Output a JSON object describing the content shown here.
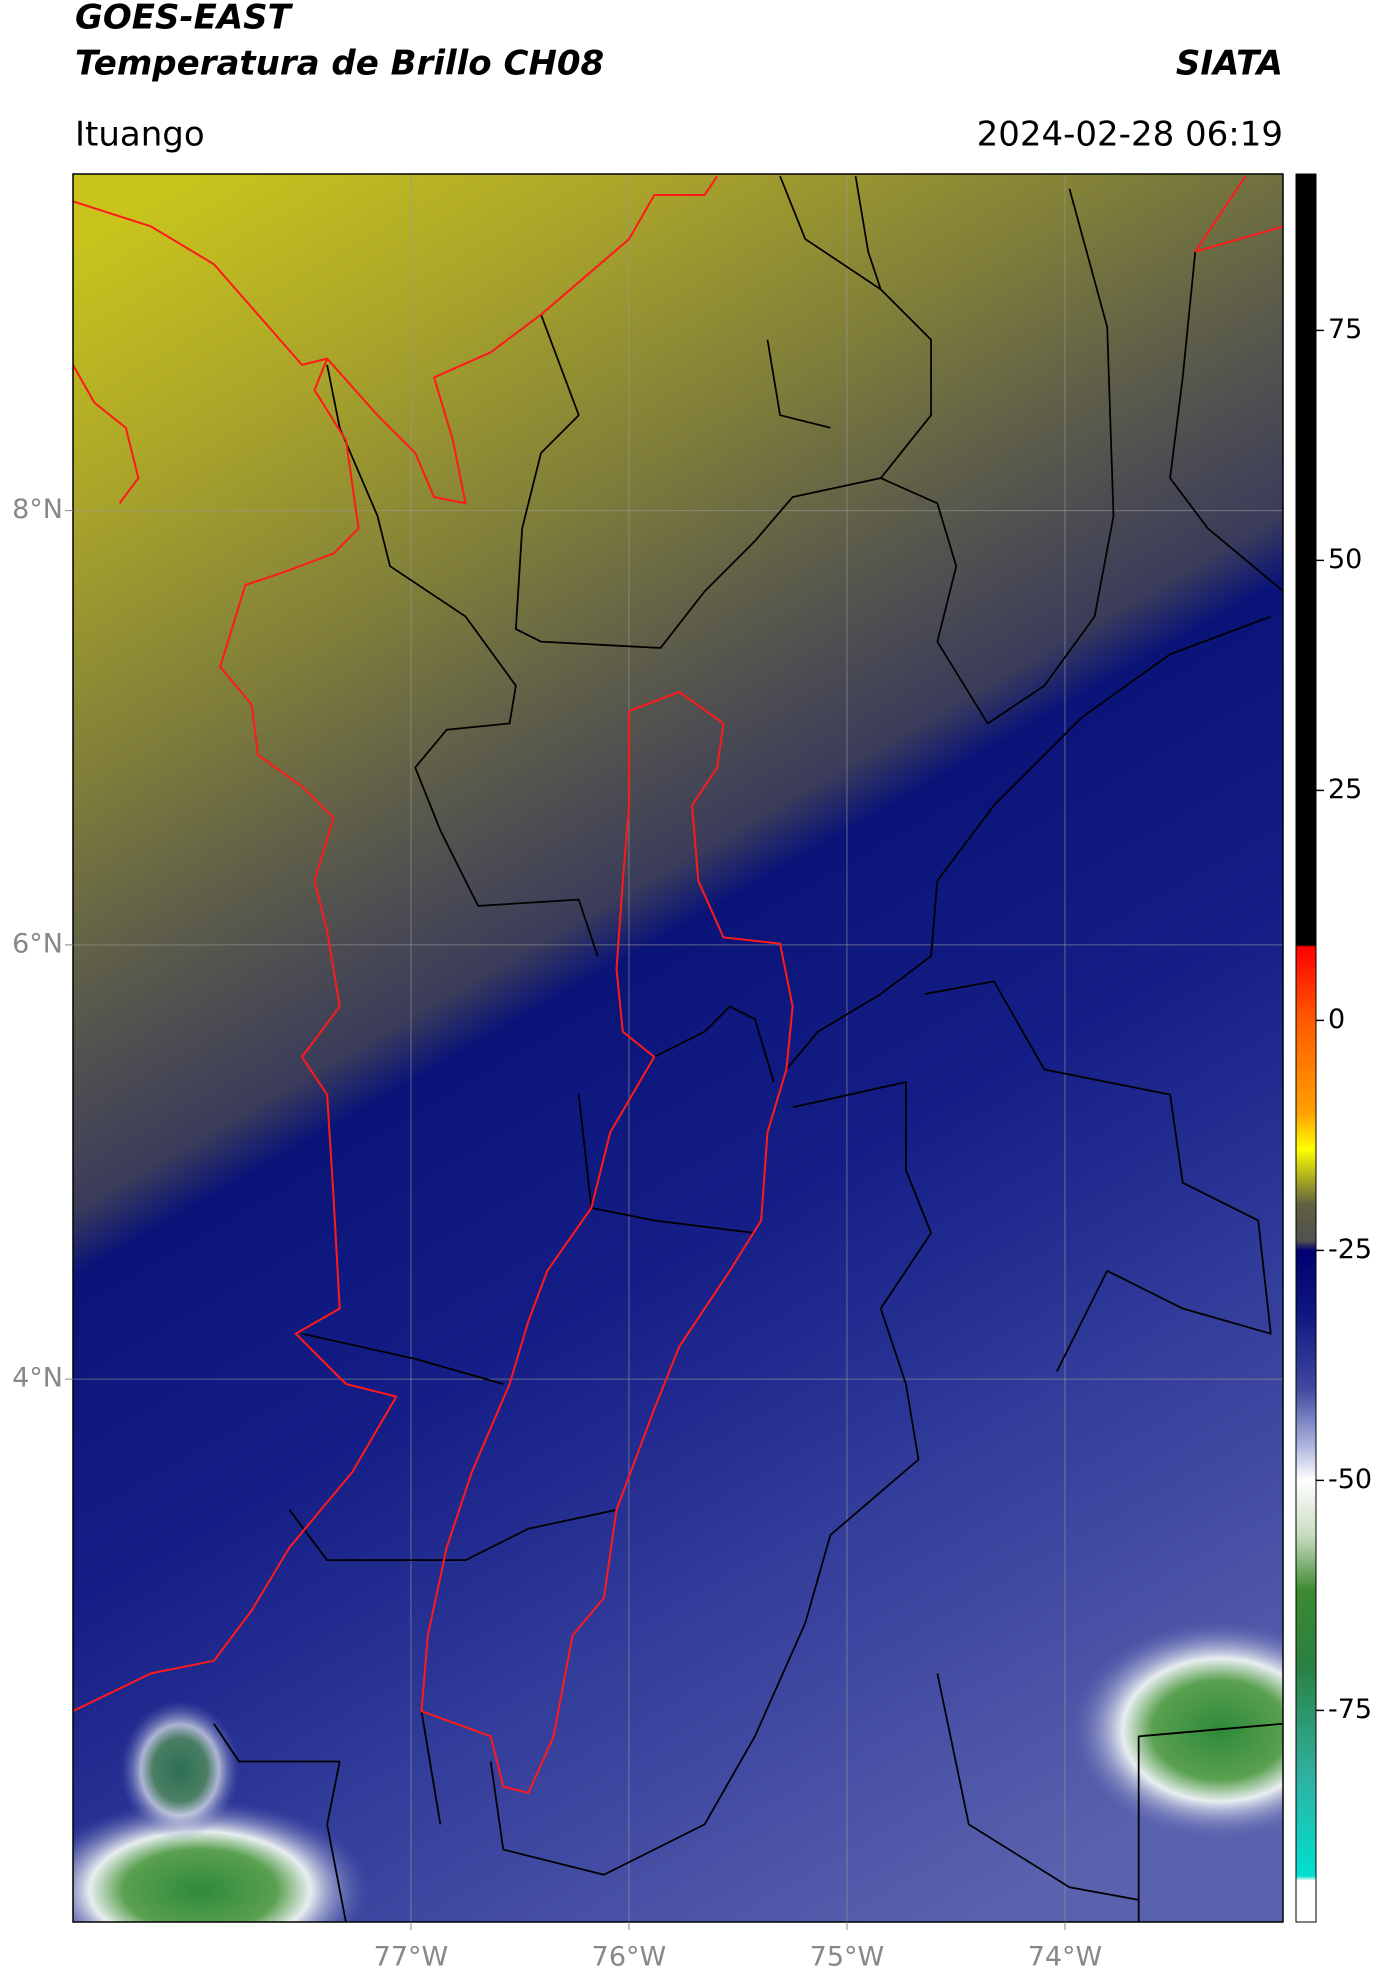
{
  "header": {
    "title": "GOES-EAST",
    "subtitle": "Temperatura de Brillo CH08",
    "brand": "SIATA",
    "location": "Ituango",
    "datetime": "2024-02-28 06:19"
  },
  "chart_data": {
    "type": "map",
    "xlim": [
      -78.55,
      -73.0
    ],
    "ylim": [
      1.5,
      9.55
    ],
    "xticks": [
      {
        "value": -77,
        "label": "77°W"
      },
      {
        "value": -76,
        "label": "76°W"
      },
      {
        "value": -75,
        "label": "75°W"
      },
      {
        "value": -74,
        "label": "74°W"
      }
    ],
    "yticks": [
      {
        "value": 4,
        "label": "4°N"
      },
      {
        "value": 6,
        "label": "6°N"
      },
      {
        "value": 8,
        "label": "8°N"
      }
    ],
    "grid": true,
    "colorbar": {
      "lim": [
        -98,
        92
      ],
      "ticks": [
        75,
        50,
        25,
        0,
        -25,
        -50,
        -75
      ],
      "stops": [
        {
          "value": 92,
          "color": "#000000"
        },
        {
          "value": 8.2,
          "color": "#000000"
        },
        {
          "value": 8,
          "color": "#ff0000"
        },
        {
          "value": 0,
          "color": "#ff5a00"
        },
        {
          "value": -10,
          "color": "#ffa000"
        },
        {
          "value": -14,
          "color": "#ffff00"
        },
        {
          "value": -17,
          "color": "#b0b020"
        },
        {
          "value": -20,
          "color": "#606040"
        },
        {
          "value": -24,
          "color": "#505050"
        },
        {
          "value": -25,
          "color": "#000070"
        },
        {
          "value": -32,
          "color": "#101880"
        },
        {
          "value": -40,
          "color": "#4048a0"
        },
        {
          "value": -46,
          "color": "#a8b0dc"
        },
        {
          "value": -50,
          "color": "#ffffff"
        },
        {
          "value": -56,
          "color": "#c8dcc0"
        },
        {
          "value": -62,
          "color": "#3c8a30"
        },
        {
          "value": -70,
          "color": "#2a8040"
        },
        {
          "value": -82,
          "color": "#30b0a0"
        },
        {
          "value": -93,
          "color": "#00e0d0"
        },
        {
          "value": -93.5,
          "color": "#ffffff"
        },
        {
          "value": -98,
          "color": "#ffffff"
        }
      ]
    }
  }
}
